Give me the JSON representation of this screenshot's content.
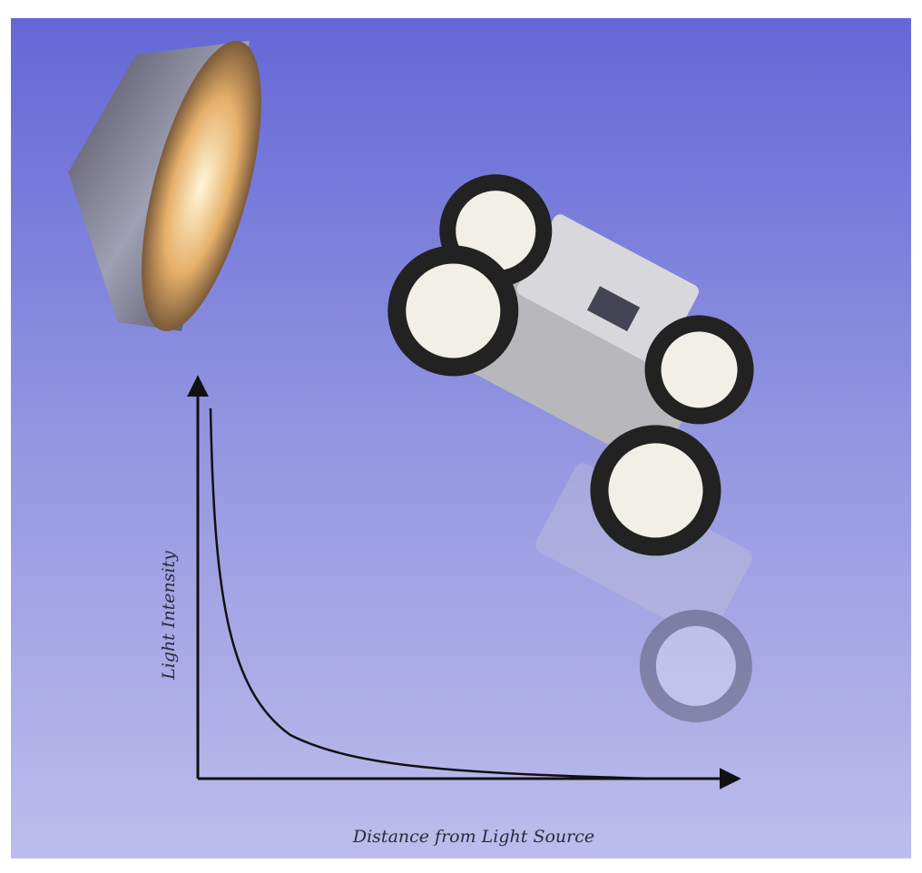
{
  "axes": {
    "y_label": "Light Intensity",
    "x_label": "Distance from Light Source"
  }
}
